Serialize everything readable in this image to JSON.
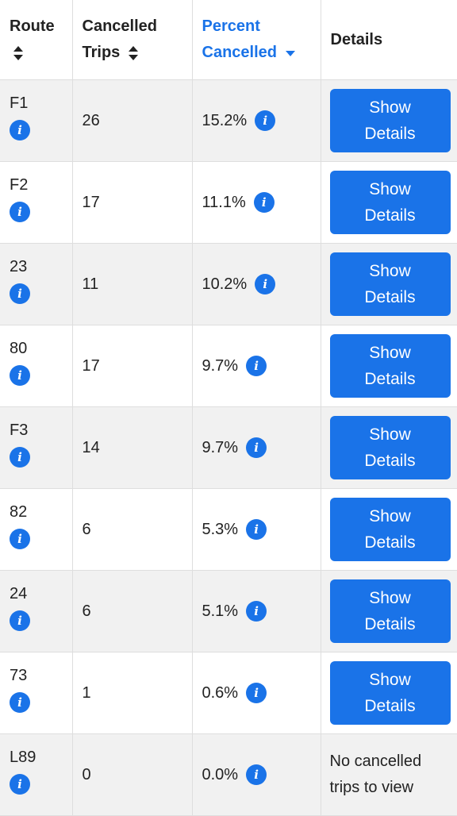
{
  "headers": {
    "route": "Route",
    "cancelled_trips": "Cancelled Trips",
    "percent_cancelled": "Percent Cancelled",
    "details": "Details"
  },
  "sorted_column": "percent_cancelled",
  "sort_direction": "descending",
  "icons": {
    "sort": "sort-both-icon",
    "sort_desc": "sort-desc-icon",
    "info": "info-icon"
  },
  "colors": {
    "accent": "#1a73e8"
  },
  "button_label": "Show Details",
  "rows": [
    {
      "route": "F1",
      "cancelled": "26",
      "percent": "15.2%",
      "has_details": true
    },
    {
      "route": "F2",
      "cancelled": "17",
      "percent": "11.1%",
      "has_details": true
    },
    {
      "route": "23",
      "cancelled": "11",
      "percent": "10.2%",
      "has_details": true
    },
    {
      "route": "80",
      "cancelled": "17",
      "percent": "9.7%",
      "has_details": true
    },
    {
      "route": "F3",
      "cancelled": "14",
      "percent": "9.7%",
      "has_details": true
    },
    {
      "route": "82",
      "cancelled": "6",
      "percent": "5.3%",
      "has_details": true
    },
    {
      "route": "24",
      "cancelled": "6",
      "percent": "5.1%",
      "has_details": true
    },
    {
      "route": "73",
      "cancelled": "1",
      "percent": "0.6%",
      "has_details": true
    },
    {
      "route": "L89",
      "cancelled": "0",
      "percent": "0.0%",
      "has_details": false,
      "details_text": "No cancelled trips to view"
    }
  ]
}
